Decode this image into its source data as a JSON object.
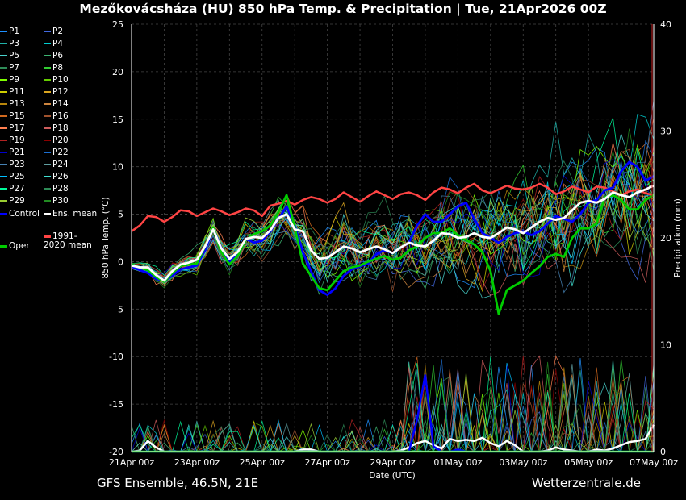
{
  "title": "Mezőkovácsháza  (HU)  850 hPa Temp. & Precipitation | Tue, 21Apr2026 00Z",
  "footer": {
    "left": "GFS Ensemble, 46.5N, 21E",
    "right": "Wetterzentrale.de"
  },
  "colors": {
    "background": "#000000",
    "ens_mean": "#ffffff",
    "control": "#0000ff",
    "oper": "#00cc00",
    "climate_mean": "#ff4444"
  },
  "legend": {
    "perturbations": [
      "P1",
      "P2",
      "P3",
      "P4",
      "P5",
      "P6",
      "P7",
      "P8",
      "P9",
      "P10",
      "P11",
      "P12",
      "P13",
      "P14",
      "P15",
      "P16",
      "P17",
      "P18",
      "P19",
      "P20",
      "P21",
      "P22",
      "P23",
      "P24",
      "P25",
      "P26",
      "P27",
      "P28",
      "P29",
      "P30"
    ],
    "perturbation_colors": [
      "#1e90ff",
      "#4169e1",
      "#20b2aa",
      "#00ced1",
      "#48d1cc",
      "#3cb371",
      "#2e8b57",
      "#32cd32",
      "#7fff00",
      "#66cd00",
      "#cdcd00",
      "#daa520",
      "#b8860b",
      "#cd853f",
      "#d2691e",
      "#a0522d",
      "#ff7f50",
      "#cd5c5c",
      "#b22222",
      "#8b0000",
      "#0000cd",
      "#1c6fd1",
      "#4682b4",
      "#5f9ea0",
      "#00bfff",
      "#40e0d0",
      "#00fa9a",
      "#2e8b57",
      "#9acd32",
      "#228b22"
    ],
    "control": "Control",
    "ens_mean": "Ens. mean",
    "oper": "Oper",
    "climate": "1991-2020 mean"
  },
  "chart_data": {
    "type": "line",
    "xlabel": "Date (UTC)",
    "ylabel_left": "850 hPa Temp. (°C)",
    "ylabel_right": "Precipitation (mm)",
    "x_start": "21Apr 00z",
    "x_end": "07May 00z",
    "x_step_hours": 6,
    "x_ticks": [
      "21Apr 00z",
      "23Apr 00z",
      "25Apr 00z",
      "27Apr 00z",
      "29Apr 00z",
      "01May 00z",
      "03May 00z",
      "05May 00z",
      "07May 00z"
    ],
    "ylim": [
      -20,
      25
    ],
    "y_ticks": [
      -20,
      -15,
      -10,
      -5,
      0,
      5,
      10,
      15,
      20,
      25
    ],
    "y2lim": [
      0,
      40
    ],
    "y2_ticks": [
      0,
      10,
      20,
      30,
      40
    ],
    "grid": true,
    "series": [
      {
        "name": "1991-2020 mean",
        "key": "climate",
        "values": [
          3.2,
          3.8,
          4.8,
          4.7,
          4.2,
          4.7,
          5.4,
          5.3,
          4.8,
          5.2,
          5.6,
          5.3,
          4.9,
          5.2,
          5.6,
          5.4,
          4.8,
          5.9,
          6.1,
          6.4,
          6.0,
          6.5,
          6.8,
          6.6,
          6.2,
          6.6,
          7.3,
          6.8,
          6.3,
          6.9,
          7.4,
          7.0,
          6.6,
          7.1,
          7.3,
          7.0,
          6.5,
          7.3,
          7.8,
          7.6,
          7.2,
          7.8,
          8.2,
          7.5,
          7.2,
          7.6,
          8.0,
          7.7,
          7.6,
          7.8,
          8.2,
          7.8,
          7.1,
          7.4,
          7.9,
          7.6,
          7.3,
          7.9,
          7.8,
          7.4,
          7.0,
          7.4,
          7.6,
          7.2,
          7.0
        ]
      },
      {
        "name": "Control",
        "key": "control",
        "values": [
          -0.5,
          -0.9,
          -1.2,
          -1.8,
          -2.0,
          -1.5,
          -0.8,
          -0.6,
          -0.4,
          1.2,
          3.5,
          1.5,
          0.0,
          0.8,
          2.4,
          2.0,
          2.2,
          3.2,
          4.5,
          5.8,
          3.8,
          1.0,
          -1.0,
          -3.0,
          -3.5,
          -2.8,
          -1.5,
          -0.8,
          -0.5,
          -0.2,
          0.8,
          1.2,
          0.9,
          1.5,
          2.0,
          3.8,
          5.0,
          4.2,
          4.2,
          5.0,
          5.8,
          6.2,
          4.5,
          3.0,
          2.5,
          2.0,
          2.6,
          3.0,
          3.2,
          2.8,
          3.2,
          4.0,
          4.8,
          4.5,
          4.2,
          5.0,
          6.2,
          6.5,
          7.5,
          7.8,
          9.5,
          10.5,
          10.0,
          8.5,
          9.0
        ]
      },
      {
        "name": "Oper",
        "key": "oper",
        "values": [
          -0.3,
          -0.6,
          -0.9,
          -1.6,
          -2.1,
          -1.2,
          -0.4,
          -0.3,
          -0.2,
          1.6,
          3.6,
          1.0,
          -0.3,
          0.6,
          2.3,
          2.9,
          3.2,
          3.8,
          5.2,
          7.0,
          3.6,
          -0.2,
          -1.5,
          -2.8,
          -3.0,
          -2.0,
          -1.0,
          -0.6,
          -0.4,
          0.0,
          0.3,
          0.6,
          0.2,
          0.4,
          1.2,
          1.6,
          2.5,
          3.0,
          3.0,
          3.5,
          2.8,
          2.3,
          1.8,
          1.0,
          -1.0,
          -5.5,
          -3.0,
          -2.5,
          -2.0,
          -1.2,
          -0.5,
          0.5,
          0.8,
          0.5,
          2.5,
          3.5,
          3.5,
          4.0,
          6.8,
          7.0,
          6.5,
          5.5,
          5.5,
          6.5,
          7.0
        ]
      },
      {
        "name": "Ens. mean",
        "key": "ens_mean",
        "values": [
          -0.4,
          -0.6,
          -0.6,
          -1.4,
          -2.0,
          -1.0,
          -0.3,
          -0.1,
          0.2,
          1.6,
          3.4,
          1.4,
          0.3,
          1.0,
          2.4,
          2.6,
          2.5,
          3.3,
          4.6,
          5.0,
          3.4,
          3.2,
          1.2,
          0.3,
          0.4,
          1.0,
          1.6,
          1.4,
          1.0,
          1.3,
          1.6,
          1.3,
          0.9,
          1.5,
          2.0,
          1.7,
          1.6,
          2.2,
          3.0,
          2.9,
          2.5,
          2.6,
          3.0,
          2.6,
          2.5,
          3.0,
          3.6,
          3.4,
          3.0,
          3.6,
          4.2,
          4.6,
          4.4,
          4.6,
          5.4,
          6.2,
          6.4,
          6.2,
          6.6,
          7.3,
          7.0,
          6.8,
          7.3,
          7.6,
          8.0
        ]
      }
    ],
    "precip_series": [
      {
        "name": "Ens. mean",
        "key": "ens_mean",
        "values": [
          0,
          0.1,
          1.0,
          0.4,
          0,
          0,
          0,
          0,
          0,
          0,
          0,
          0,
          0,
          0,
          0,
          0,
          0,
          0,
          0,
          0,
          0,
          0.2,
          0.2,
          0,
          0,
          0,
          0,
          0,
          0,
          0,
          0,
          0,
          0,
          0.1,
          0.4,
          0.8,
          1.0,
          0.6,
          0.3,
          1.2,
          1.0,
          1.1,
          1.0,
          1.3,
          0.8,
          0.5,
          1.0,
          0.6,
          0,
          0,
          0,
          0.1,
          0.4,
          0.2,
          0.1,
          0,
          0,
          0.2,
          0.1,
          0.3,
          0.6,
          0.9,
          1.0,
          1.2,
          2.5
        ]
      },
      {
        "name": "Control",
        "key": "control",
        "values": [
          0,
          0,
          0,
          0,
          0,
          0,
          0,
          0,
          0,
          0,
          0,
          0,
          0,
          0,
          0,
          0,
          0,
          0,
          0,
          0,
          0,
          0,
          0,
          0,
          0,
          0,
          0,
          0,
          0,
          0,
          0,
          0,
          0,
          0,
          0,
          3.0,
          7.2,
          0.5,
          0,
          0,
          0.2,
          0,
          0,
          0,
          0,
          0,
          0,
          0,
          0,
          0,
          0,
          0,
          0,
          0,
          0,
          0,
          0,
          0,
          0,
          0,
          0,
          0,
          0,
          0,
          0
        ]
      },
      {
        "name": "Oper",
        "key": "oper",
        "values": [
          0,
          0,
          0,
          0,
          0,
          0,
          0,
          0,
          0,
          0,
          0,
          0,
          0,
          0,
          0,
          0,
          0,
          0,
          0,
          0,
          0,
          0,
          0,
          0,
          0,
          0,
          0,
          0,
          0,
          0,
          0,
          0,
          0,
          0,
          0,
          0,
          0,
          0,
          0,
          0,
          0,
          0,
          0,
          0,
          0,
          0,
          0,
          0,
          0,
          0,
          0,
          0,
          0,
          0,
          0,
          0,
          0,
          0,
          0,
          0,
          0,
          0,
          0,
          0,
          0
        ]
      }
    ]
  }
}
